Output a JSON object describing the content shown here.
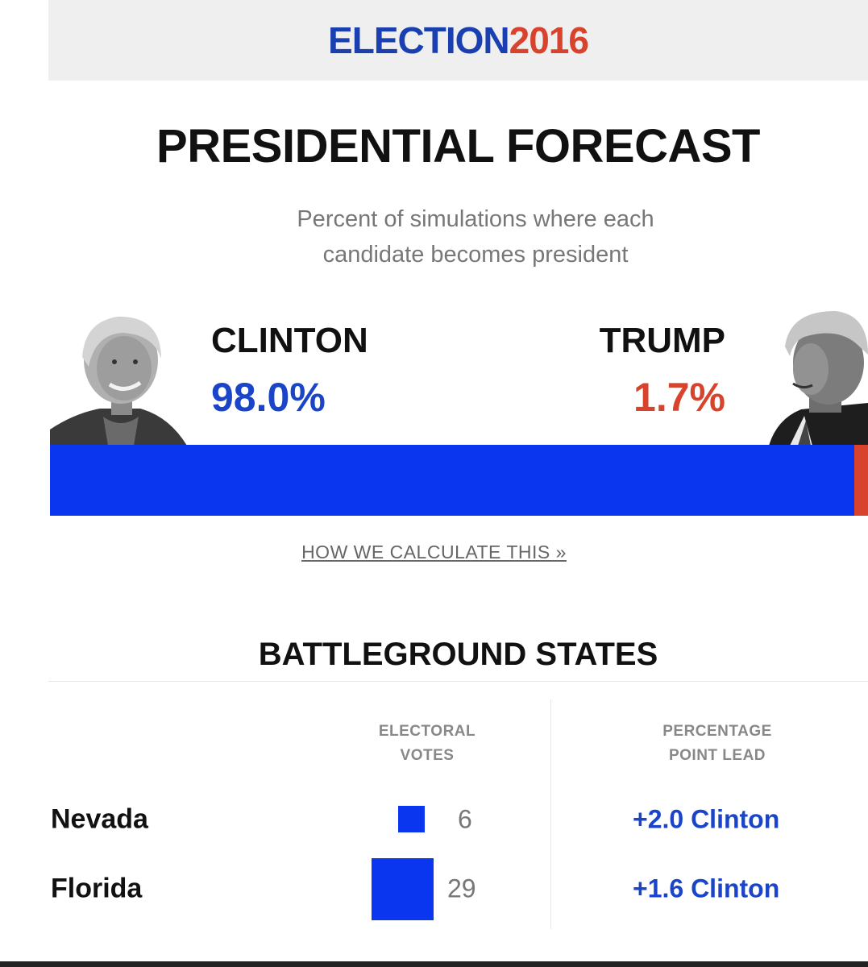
{
  "header": {
    "brand_part1": "ELECTION",
    "brand_part2": "2016"
  },
  "forecast": {
    "title": "PRESIDENTIAL FORECAST",
    "subtitle_line1": "Percent of simulations where each",
    "subtitle_line2": "candidate becomes president"
  },
  "candidates": [
    {
      "name": "CLINTON",
      "percent_label": "98.0%",
      "percent": 98.0,
      "color": "#1a45c9"
    },
    {
      "name": "TRUMP",
      "percent_label": "1.7%",
      "percent": 1.7,
      "color": "#d8432e"
    }
  ],
  "link": {
    "label": "HOW WE CALCULATE THIS »"
  },
  "battleground": {
    "title": "BATTLEGROUND STATES",
    "col_votes_line1": "ELECTORAL",
    "col_votes_line2": "VOTES",
    "col_lead_line1": "PERCENTAGE",
    "col_lead_line2": "POINT LEAD",
    "rows": [
      {
        "state": "Nevada",
        "votes": "6",
        "lead": "+2.0 Clinton"
      },
      {
        "state": "Florida",
        "votes": "29",
        "lead": "+1.6 Clinton"
      }
    ]
  },
  "colors": {
    "blue": "#0a36f0",
    "red": "#d8432e",
    "brand_blue": "#1a3fb0"
  }
}
